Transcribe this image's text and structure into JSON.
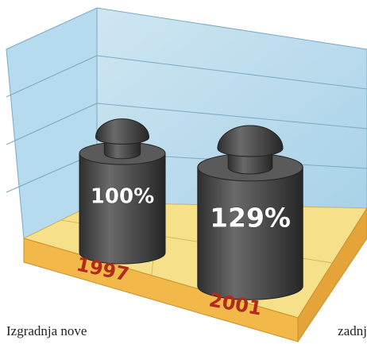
{
  "chart_data": {
    "type": "pictogram",
    "categories": [
      "1997",
      "2001"
    ],
    "values": [
      100,
      129
    ],
    "value_labels": [
      "100%",
      "129%"
    ],
    "color": "#4a4a4a"
  },
  "caption": {
    "left": "Izgradnja nove",
    "right": "zadnj"
  }
}
